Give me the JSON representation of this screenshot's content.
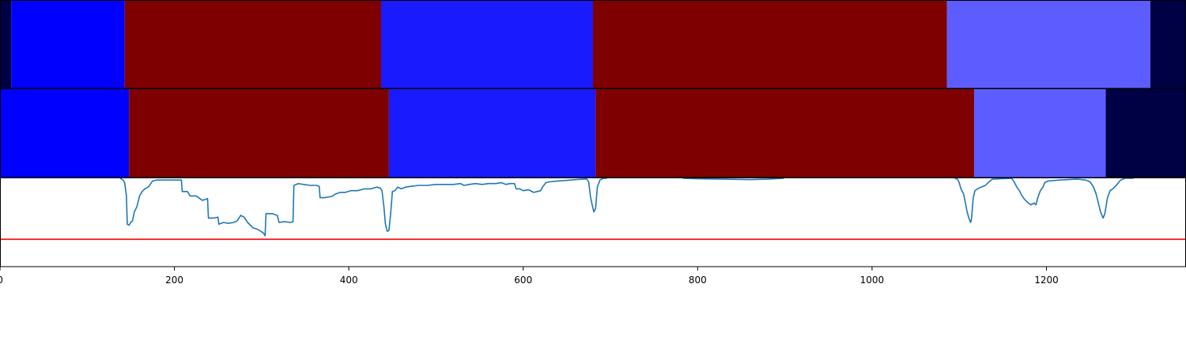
{
  "chart_data": [
    {
      "type": "segment_bar",
      "panel": "top",
      "segments": [
        {
          "start": 0,
          "end": 13,
          "color": "#000044"
        },
        {
          "start": 13,
          "end": 143,
          "color": "#0000ff"
        },
        {
          "start": 143,
          "end": 437,
          "color": "#7f0000"
        },
        {
          "start": 437,
          "end": 680,
          "color": "#1a1aff"
        },
        {
          "start": 680,
          "end": 1086,
          "color": "#7f0000"
        },
        {
          "start": 1086,
          "end": 1319,
          "color": "#5d5dff"
        },
        {
          "start": 1319,
          "end": 1360,
          "color": "#000044"
        }
      ]
    },
    {
      "type": "segment_bar",
      "panel": "middle",
      "segments": [
        {
          "start": 0,
          "end": 148,
          "color": "#0000ff"
        },
        {
          "start": 148,
          "end": 446,
          "color": "#7f0000"
        },
        {
          "start": 446,
          "end": 683,
          "color": "#1a1aff"
        },
        {
          "start": 683,
          "end": 1117,
          "color": "#7f0000"
        },
        {
          "start": 1117,
          "end": 1268,
          "color": "#5d5dff"
        },
        {
          "start": 1268,
          "end": 1360,
          "color": "#000044"
        }
      ]
    },
    {
      "type": "line",
      "panel": "bottom",
      "xlim": [
        0,
        1360
      ],
      "ylim": [
        0,
        1
      ],
      "xticks": [
        0,
        200,
        400,
        600,
        800,
        1000,
        1200
      ],
      "series": [
        {
          "color": "#1f77b4",
          "points": [
            [
              138,
              1.0
            ],
            [
              141,
              0.98
            ],
            [
              143,
              0.95
            ],
            [
              145,
              0.8
            ],
            [
              146,
              0.48
            ],
            [
              148,
              0.47
            ],
            [
              150,
              0.5
            ],
            [
              152,
              0.52
            ],
            [
              154,
              0.62
            ],
            [
              157,
              0.68
            ],
            [
              160,
              0.8
            ],
            [
              163,
              0.85
            ],
            [
              166,
              0.88
            ],
            [
              170,
              0.9
            ],
            [
              175,
              0.97
            ],
            [
              180,
              0.98
            ],
            [
              190,
              0.98
            ],
            [
              200,
              0.98
            ],
            [
              208,
              0.98
            ],
            [
              209,
              0.85
            ],
            [
              215,
              0.85
            ],
            [
              218,
              0.8
            ],
            [
              225,
              0.8
            ],
            [
              232,
              0.75
            ],
            [
              238,
              0.77
            ],
            [
              239,
              0.55
            ],
            [
              245,
              0.55
            ],
            [
              250,
              0.56
            ],
            [
              251,
              0.48
            ],
            [
              256,
              0.5
            ],
            [
              262,
              0.49
            ],
            [
              268,
              0.5
            ],
            [
              272,
              0.52
            ],
            [
              276,
              0.58
            ],
            [
              280,
              0.56
            ],
            [
              284,
              0.5
            ],
            [
              290,
              0.44
            ],
            [
              296,
              0.42
            ],
            [
              302,
              0.38
            ],
            [
              304,
              0.35
            ],
            [
              305,
              0.6
            ],
            [
              312,
              0.6
            ],
            [
              318,
              0.58
            ],
            [
              320,
              0.5
            ],
            [
              326,
              0.51
            ],
            [
              333,
              0.5
            ],
            [
              336,
              0.51
            ],
            [
              337,
              0.92
            ],
            [
              342,
              0.94
            ],
            [
              348,
              0.93
            ],
            [
              356,
              0.92
            ],
            [
              363,
              0.92
            ],
            [
              366,
              0.91
            ],
            [
              367,
              0.78
            ],
            [
              372,
              0.78
            ],
            [
              378,
              0.79
            ],
            [
              382,
              0.8
            ],
            [
              384,
              0.82
            ],
            [
              390,
              0.84
            ],
            [
              396,
              0.84
            ],
            [
              402,
              0.86
            ],
            [
              410,
              0.86
            ],
            [
              418,
              0.88
            ],
            [
              425,
              0.88
            ],
            [
              432,
              0.9
            ],
            [
              436,
              0.89
            ],
            [
              438,
              0.86
            ],
            [
              440,
              0.7
            ],
            [
              442,
              0.48
            ],
            [
              444,
              0.4
            ],
            [
              446,
              0.41
            ],
            [
              448,
              0.6
            ],
            [
              450,
              0.85
            ],
            [
              453,
              0.86
            ],
            [
              456,
              0.9
            ],
            [
              460,
              0.88
            ],
            [
              465,
              0.9
            ],
            [
              472,
              0.91
            ],
            [
              480,
              0.92
            ],
            [
              490,
              0.92
            ],
            [
              500,
              0.93
            ],
            [
              510,
              0.93
            ],
            [
              520,
              0.93
            ],
            [
              528,
              0.94
            ],
            [
              532,
              0.92
            ],
            [
              538,
              0.93
            ],
            [
              545,
              0.94
            ],
            [
              553,
              0.93
            ],
            [
              560,
              0.94
            ],
            [
              568,
              0.94
            ],
            [
              575,
              0.95
            ],
            [
              580,
              0.93
            ],
            [
              585,
              0.94
            ],
            [
              590,
              0.94
            ],
            [
              592,
              0.88
            ],
            [
              596,
              0.88
            ],
            [
              600,
              0.86
            ],
            [
              606,
              0.87
            ],
            [
              612,
              0.84
            ],
            [
              616,
              0.85
            ],
            [
              620,
              0.86
            ],
            [
              622,
              0.9
            ],
            [
              626,
              0.95
            ],
            [
              630,
              0.96
            ],
            [
              640,
              0.97
            ],
            [
              655,
              0.98
            ],
            [
              668,
              0.99
            ],
            [
              673,
              0.99
            ],
            [
              675,
              0.96
            ],
            [
              677,
              0.8
            ],
            [
              679,
              0.7
            ],
            [
              681,
              0.62
            ],
            [
              683,
              0.66
            ],
            [
              685,
              0.9
            ],
            [
              688,
              0.98
            ],
            [
              692,
              1.0
            ],
            [
              696,
              1.0
            ]
          ]
        },
        {
          "color": "#1f77b4",
          "points": [
            [
              783,
              1.0
            ],
            [
              800,
              0.995
            ],
            [
              830,
              0.99
            ],
            [
              860,
              0.985
            ],
            [
              880,
              0.99
            ],
            [
              899,
              1.0
            ]
          ]
        },
        {
          "color": "#1f77b4",
          "points": [
            [
              1095,
              1.0
            ],
            [
              1098,
              0.99
            ],
            [
              1100,
              0.95
            ],
            [
              1102,
              0.88
            ],
            [
              1105,
              0.82
            ],
            [
              1107,
              0.72
            ],
            [
              1109,
              0.62
            ],
            [
              1111,
              0.55
            ],
            [
              1113,
              0.5
            ],
            [
              1114,
              0.54
            ],
            [
              1116,
              0.78
            ],
            [
              1118,
              0.86
            ],
            [
              1121,
              0.88
            ],
            [
              1125,
              0.9
            ],
            [
              1130,
              0.92
            ],
            [
              1134,
              0.96
            ],
            [
              1138,
              0.99
            ],
            [
              1160,
              1.0
            ],
            [
              1163,
              0.96
            ],
            [
              1166,
              0.9
            ],
            [
              1169,
              0.86
            ],
            [
              1172,
              0.8
            ],
            [
              1175,
              0.76
            ],
            [
              1178,
              0.73
            ],
            [
              1182,
              0.7
            ],
            [
              1186,
              0.72
            ],
            [
              1188,
              0.7
            ],
            [
              1190,
              0.78
            ],
            [
              1193,
              0.86
            ],
            [
              1196,
              0.9
            ],
            [
              1198,
              0.95
            ],
            [
              1202,
              0.97
            ],
            [
              1215,
              0.98
            ],
            [
              1235,
              0.99
            ],
            [
              1245,
              0.98
            ],
            [
              1250,
              0.96
            ],
            [
              1254,
              0.9
            ],
            [
              1257,
              0.82
            ],
            [
              1260,
              0.7
            ],
            [
              1262,
              0.62
            ],
            [
              1265,
              0.55
            ],
            [
              1267,
              0.6
            ],
            [
              1270,
              0.78
            ],
            [
              1273,
              0.86
            ],
            [
              1276,
              0.88
            ],
            [
              1280,
              0.92
            ],
            [
              1285,
              0.98
            ],
            [
              1290,
              1.0
            ],
            [
              1300,
              1.0
            ]
          ]
        },
        {
          "color": "#ff0000",
          "points": [
            [
              0,
              0.31
            ],
            [
              1360,
              0.31
            ]
          ]
        }
      ]
    }
  ]
}
